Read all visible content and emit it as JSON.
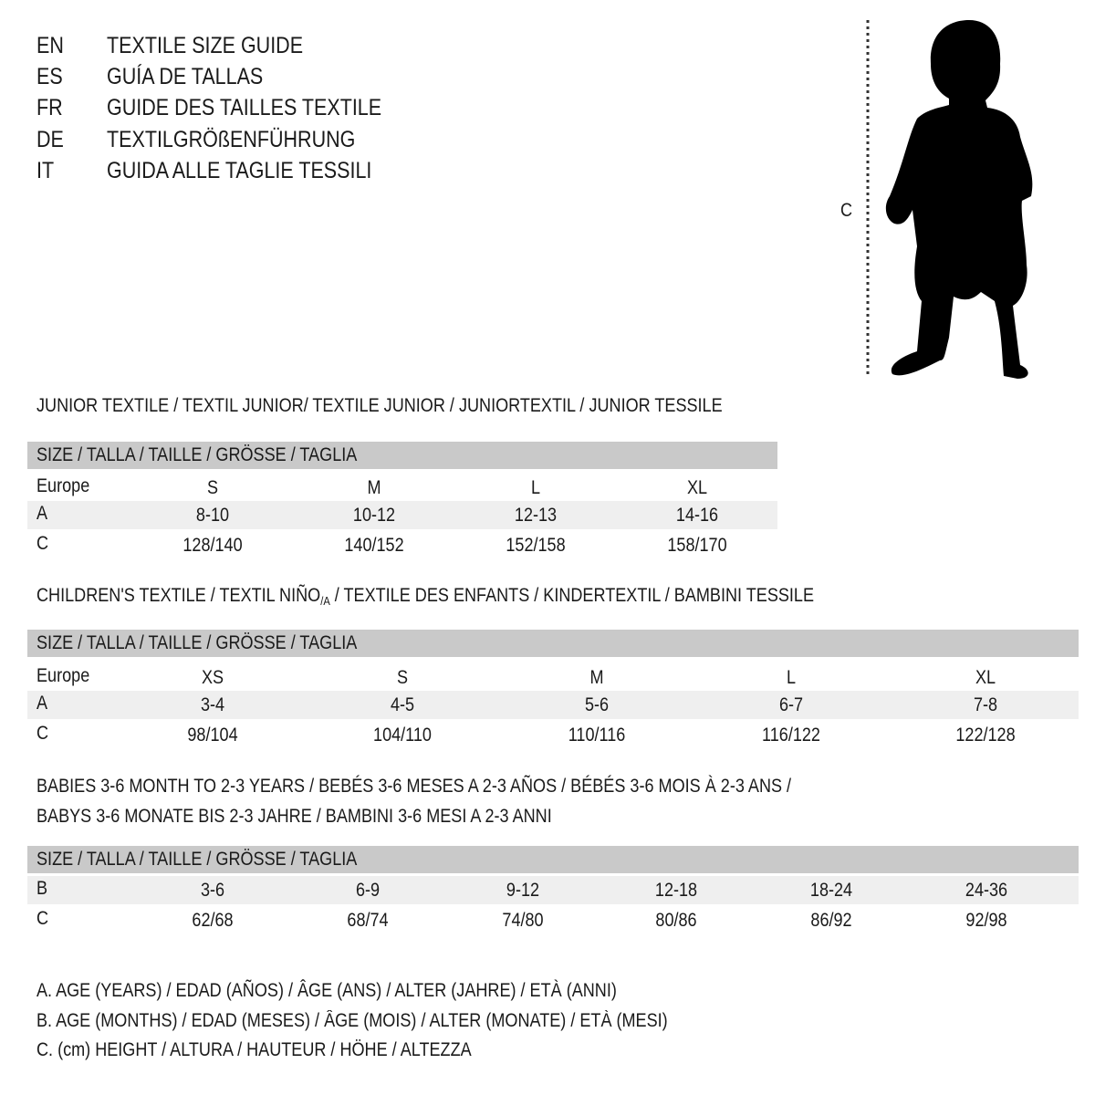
{
  "languages": [
    {
      "code": "EN",
      "title": "TEXTILE SIZE GUIDE"
    },
    {
      "code": "ES",
      "title": "GUÍA DE TALLAS"
    },
    {
      "code": "FR",
      "title": "GUIDE DES TAILLES TEXTILE"
    },
    {
      "code": "DE",
      "title": "TEXTILGRÖßENFÜHRUNG"
    },
    {
      "code": "IT",
      "title": "GUIDA ALLE TAGLIE TESSILI"
    }
  ],
  "figure": {
    "measure_label": "C",
    "icon": "child-silhouette-icon"
  },
  "colors": {
    "header_band": "#c9c9c9",
    "alt_row": "#efefef",
    "text": "#1a1a1a"
  },
  "sections": [
    {
      "title_lines": [
        "JUNIOR TEXTILE / TEXTIL JUNIOR/ TEXTILE JUNIOR / JUNIORTEXTIL / JUNIOR TESSILE"
      ],
      "header": "SIZE / TALLA / TAILLE / GRÖSSE / TAGLIA",
      "rows": [
        {
          "label": "Europe",
          "values": [
            "S",
            "M",
            "L",
            "XL"
          ]
        },
        {
          "label": "A",
          "values": [
            "8-10",
            "10-12",
            "12-13",
            "14-16"
          ]
        },
        {
          "label": "C",
          "values": [
            "128/140",
            "140/152",
            "152/158",
            "158/170"
          ]
        }
      ]
    },
    {
      "title_pre": "CHILDREN'S TEXTILE / TEXTIL NIÑO",
      "title_sub": "/A",
      "title_post": " / TEXTILE DES ENFANTS / KINDERTEXTIL / BAMBINI TESSILE",
      "header": "SIZE / TALLA / TAILLE / GRÖSSE / TAGLIA",
      "rows": [
        {
          "label": "Europe",
          "values": [
            "XS",
            "S",
            "M",
            "L",
            "XL"
          ]
        },
        {
          "label": "A",
          "values": [
            "3-4",
            "4-5",
            "5-6",
            "6-7",
            "7-8"
          ]
        },
        {
          "label": "C",
          "values": [
            "98/104",
            "104/110",
            "110/116",
            "116/122",
            "122/128"
          ]
        }
      ]
    },
    {
      "title_lines": [
        "BABIES 3-6 MONTH TO 2-3 YEARS / BEBÉS 3-6 MESES A 2-3 AÑOS / BÉBÉS 3-6 MOIS À 2-3 ANS /",
        "BABYS 3-6 MONATE BIS 2-3 JAHRE / BAMBINI 3-6 MESI A 2-3 ANNI"
      ],
      "header": "SIZE / TALLA / TAILLE / GRÖSSE / TAGLIA",
      "rows": [
        {
          "label": "B",
          "values": [
            "3-6",
            "6-9",
            "9-12",
            "12-18",
            "18-24",
            "24-36"
          ]
        },
        {
          "label": "C",
          "values": [
            "62/68",
            "68/74",
            "74/80",
            "80/86",
            "86/92",
            "92/98"
          ]
        }
      ]
    }
  ],
  "legend": [
    "A. AGE (YEARS) / EDAD (AÑOS) / ÂGE (ANS) / ALTER (JAHRE) / ETÀ (ANNI)",
    "B. AGE (MONTHS) / EDAD (MESES) / ÂGE (MOIS) / ALTER (MONATE) / ETÀ (MESI)",
    "C. (cm) HEIGHT / ALTURA / HAUTEUR / HÖHE / ALTEZZA"
  ]
}
